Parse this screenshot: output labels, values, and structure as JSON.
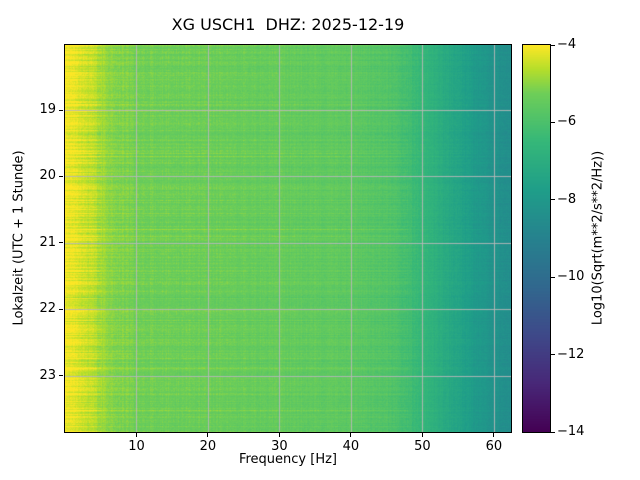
{
  "title": "XG USCH1  DHZ: 2025-12-19",
  "axes": {
    "xlabel": "Frequency [Hz]",
    "ylabel": "Lokalzeit (UTC + 1 Stunde)",
    "x_ticks": [
      10,
      20,
      30,
      40,
      50,
      60
    ],
    "y_ticks": [
      19,
      20,
      21,
      22,
      23
    ]
  },
  "colorbar": {
    "label": "Log10(Sqrt(m**2/s**2/Hz))",
    "ticks": [
      {
        "label": "−4",
        "value": -4
      },
      {
        "label": "−6",
        "value": -6
      },
      {
        "label": "−8",
        "value": -8
      },
      {
        "label": "−10",
        "value": -10
      },
      {
        "label": "−12",
        "value": -12
      },
      {
        "label": "−14",
        "value": -14
      }
    ]
  },
  "chart_data": {
    "type": "heatmap",
    "subtype": "spectrogram",
    "title": "XG USCH1  DHZ: 2025-12-19",
    "station": "XG USCH1",
    "channel": "DHZ",
    "date": "2025-12-19",
    "xlabel": "Frequency [Hz]",
    "ylabel": "Lokalzeit (UTC + 1 Stunde)",
    "colorbar_label": "Log10(Sqrt(m**2/s**2/Hz))",
    "x_range_hz": [
      0,
      62.4
    ],
    "y_range_hours_local": [
      18.02,
      23.85
    ],
    "value_range_log10": [
      -14,
      -4
    ],
    "grid": true,
    "grid_color": "#b8b8b8",
    "colormap": "viridis",
    "colormap_stops": [
      {
        "t": 0.0,
        "color": "#440154"
      },
      {
        "t": 0.125,
        "color": "#482878"
      },
      {
        "t": 0.25,
        "color": "#3e4989"
      },
      {
        "t": 0.375,
        "color": "#31688e"
      },
      {
        "t": 0.5,
        "color": "#26828e"
      },
      {
        "t": 0.625,
        "color": "#1f9e89"
      },
      {
        "t": 0.75,
        "color": "#35b779"
      },
      {
        "t": 0.875,
        "color": "#6ece58"
      },
      {
        "t": 0.9375,
        "color": "#b5de2b"
      },
      {
        "t": 1.0,
        "color": "#fde725"
      }
    ],
    "spectral_profile_log10_vs_hz": [
      [
        0,
        -4.1
      ],
      [
        2,
        -4.35
      ],
      [
        4,
        -4.6
      ],
      [
        6,
        -5.0
      ],
      [
        10,
        -5.25
      ],
      [
        20,
        -5.35
      ],
      [
        30,
        -5.45
      ],
      [
        40,
        -5.6
      ],
      [
        46,
        -5.9
      ],
      [
        50,
        -6.5
      ],
      [
        54,
        -7.3
      ],
      [
        58,
        -8.0
      ],
      [
        62.4,
        -8.5
      ]
    ]
  }
}
